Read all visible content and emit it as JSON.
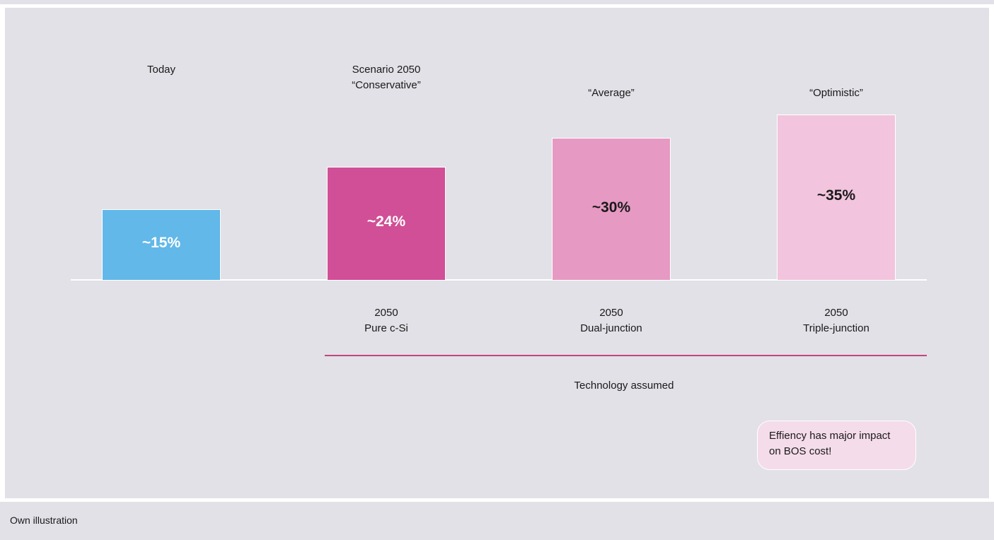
{
  "chart_data": {
    "type": "bar",
    "categories": [
      "Today",
      "Scenario 2050\n“Conservative”",
      "“Average”",
      "“Optimistic”"
    ],
    "values": [
      15,
      24,
      30,
      35
    ],
    "value_labels": [
      "~15%",
      "~24%",
      "~30%",
      "~35%"
    ],
    "colors": [
      "#62b8e8",
      "#d14f96",
      "#e699c3",
      "#f2c4de"
    ],
    "value_label_colors": [
      "#ffffff",
      "#ffffff",
      "#1a1a1a",
      "#1a1a1a"
    ],
    "technologies": [
      null,
      "2050\nPure c-Si",
      "2050\nDual-junction",
      "2050\nTriple-junction"
    ],
    "technology_axis_label": "Technology assumed",
    "annotation": "Effiency has major impact on BOS cost!"
  },
  "footer": {
    "source": "Own illustration"
  }
}
